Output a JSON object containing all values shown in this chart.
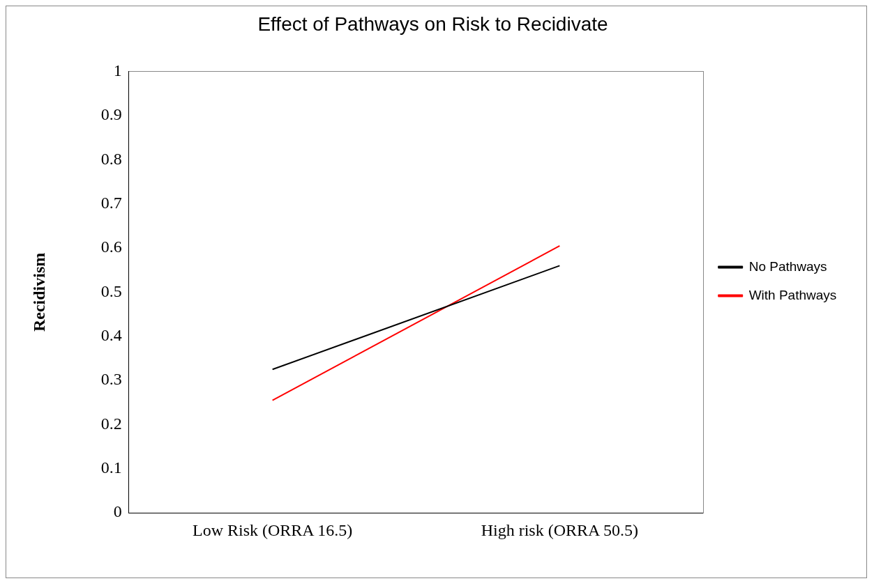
{
  "chart_data": {
    "type": "line",
    "title": "Effect of Pathways on Risk to Recidivate",
    "ylabel": "Recidivism",
    "categories": [
      "Low Risk (ORRA 16.5)",
      "High risk (ORRA 50.5)"
    ],
    "series": [
      {
        "name": "No Pathways",
        "color": "#000000",
        "values": [
          0.325,
          0.56
        ]
      },
      {
        "name": "With Pathways",
        "color": "#ff0000",
        "values": [
          0.255,
          0.605
        ]
      }
    ],
    "ylim": [
      0,
      1
    ],
    "yticks": [
      0,
      0.1,
      0.2,
      0.3,
      0.4,
      0.5,
      0.6,
      0.7,
      0.8,
      0.9,
      1
    ],
    "grid": false,
    "legend": "right",
    "marker": "none",
    "line_style": "solid"
  }
}
